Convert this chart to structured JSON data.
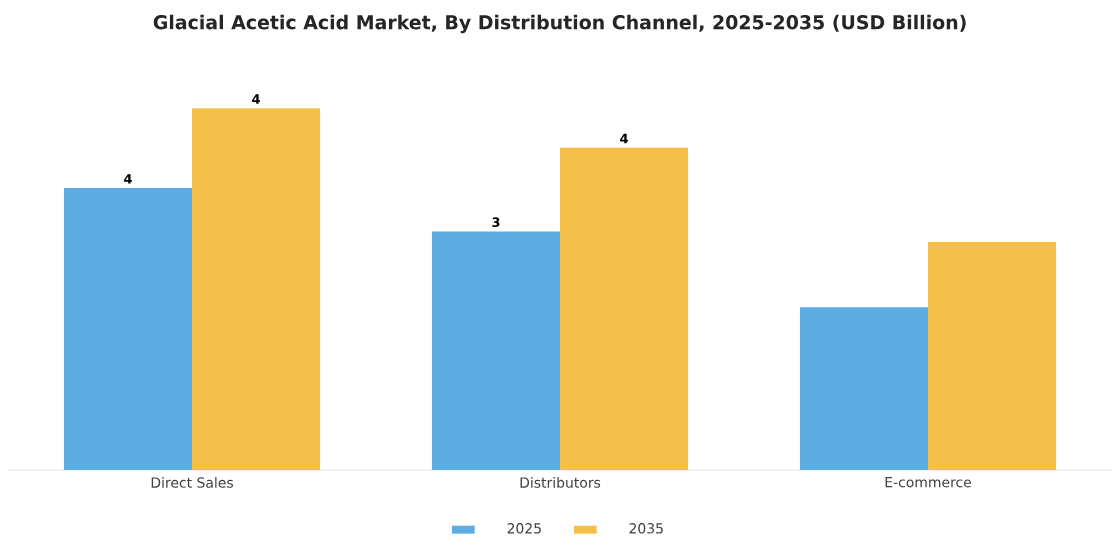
{
  "chart_data": {
    "type": "bar",
    "title": "Glacial Acetic Acid Market, By Distribution Channel, 2025-2035 (USD Billion)",
    "categories": [
      "Direct Sales",
      "Distributors",
      "E-commerce"
    ],
    "legend": "bottom",
    "series": [
      {
        "name": "2025",
        "color": "#5dade2",
        "values": [
          3.5,
          2.96,
          2.02
        ],
        "value_labels": [
          "4",
          "3",
          null
        ]
      },
      {
        "name": "2035",
        "color": "#f5c04a",
        "values": [
          4.49,
          4.0,
          2.83
        ],
        "value_labels": [
          "4",
          "4",
          null
        ]
      }
    ]
  }
}
